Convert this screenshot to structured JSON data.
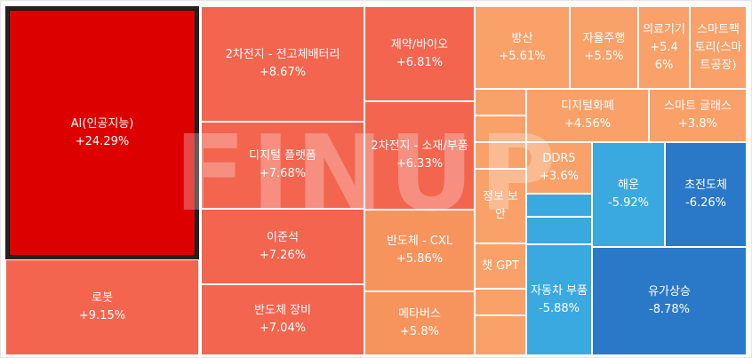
{
  "watermark": "FINUP",
  "chart_data": {
    "type": "treemap",
    "unit": "%",
    "colors": {
      "strong_up": "#dd0000",
      "up": "#f3654e",
      "mild_up": "#f7945e",
      "light_up": "#f9a169",
      "down": "#3aa9e0",
      "strong_down": "#2a79c8"
    },
    "items": [
      {
        "name": "AI(인공지능)",
        "change": "+24.29%",
        "value": 24.29,
        "color": "#dd0000",
        "selected": true
      },
      {
        "name": "로봇",
        "change": "+9.15%",
        "value": 9.15,
        "color": "#f3654e"
      },
      {
        "name": "2차전지 - 전고체배터리",
        "change": "+8.67%",
        "value": 8.67,
        "color": "#f3654e"
      },
      {
        "name": "디지털 플랫폼",
        "change": "+7.68%",
        "value": 7.68,
        "color": "#f3654e"
      },
      {
        "name": "이준석",
        "change": "+7.26%",
        "value": 7.26,
        "color": "#f3654e"
      },
      {
        "name": "반도체 장비",
        "change": "+7.04%",
        "value": 7.04,
        "color": "#f3654e"
      },
      {
        "name": "제약/바이오",
        "change": "+6.81%",
        "value": 6.81,
        "color": "#f3654e"
      },
      {
        "name": "2차전지 - 소재/부품",
        "change": "+6.33%",
        "value": 6.33,
        "color": "#f3654e"
      },
      {
        "name": "반도체 - CXL",
        "change": "+5.86%",
        "value": 5.86,
        "color": "#f7945e"
      },
      {
        "name": "메타버스",
        "change": "+5.8%",
        "value": 5.8,
        "color": "#f7945e"
      },
      {
        "name": "방산",
        "change": "+5.61%",
        "value": 5.61,
        "color": "#f9a169"
      },
      {
        "name": "자율주행",
        "change": "+5.5%",
        "value": 5.5,
        "color": "#f9a169"
      },
      {
        "name": "의료기기",
        "change": "+5.46%",
        "value": 5.46,
        "color": "#f9a169"
      },
      {
        "name": "스마트팩토리(스마트공장)",
        "change": "",
        "value": null,
        "color": "#f9a169"
      },
      {
        "name": "디지털화폐",
        "change": "+4.56%",
        "value": 4.56,
        "color": "#f9a169"
      },
      {
        "name": "스마트 글래스",
        "change": "+3.8%",
        "value": 3.8,
        "color": "#f9a169"
      },
      {
        "name": "DDR5",
        "change": "+3.6%",
        "value": 3.6,
        "color": "#f9a169"
      },
      {
        "name": "정보 보안",
        "change": "",
        "value": null,
        "color": "#f9a169"
      },
      {
        "name": "챗 GPT",
        "change": "",
        "value": null,
        "color": "#f9a169"
      },
      {
        "name": "",
        "change": "",
        "value": null,
        "color": "#f9a169"
      },
      {
        "name": "",
        "change": "",
        "value": null,
        "color": "#f9a169"
      },
      {
        "name": "",
        "change": "",
        "value": null,
        "color": "#f9a169"
      },
      {
        "name": "",
        "change": "",
        "value": null,
        "color": "#f9a169"
      },
      {
        "name": "",
        "change": "",
        "value": null,
        "color": "#f9a169"
      },
      {
        "name": "",
        "change": "",
        "value": null,
        "color": "#f9a169"
      },
      {
        "name": "해운",
        "change": "-5.92%",
        "value": -5.92,
        "color": "#3aa9e0"
      },
      {
        "name": "초전도체",
        "change": "-6.26%",
        "value": -6.26,
        "color": "#2a79c8"
      },
      {
        "name": "",
        "change": "",
        "value": null,
        "color": "#3aa9e0"
      },
      {
        "name": "",
        "change": "",
        "value": null,
        "color": "#3aa9e0"
      },
      {
        "name": "자동차 부품",
        "change": "-5.88%",
        "value": -5.88,
        "color": "#3aa9e0"
      },
      {
        "name": "유가상승",
        "change": "-8.78%",
        "value": -8.78,
        "color": "#2a79c8"
      }
    ]
  }
}
